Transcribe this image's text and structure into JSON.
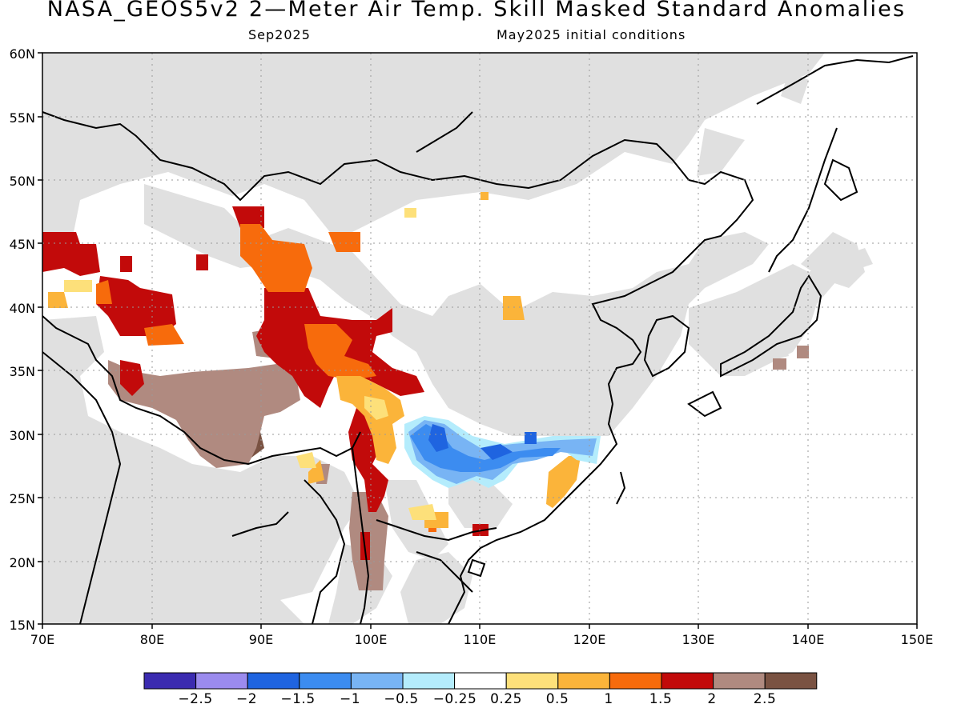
{
  "title": "NASA_GEOS5v2 2—Meter Air Temp. Skill Masked Standard Anomalies",
  "subtitle_left": "Sep2025",
  "subtitle_right": "May2025 initial conditions",
  "lat_labels": [
    "60N",
    "55N",
    "50N",
    "45N",
    "40N",
    "35N",
    "30N",
    "25N",
    "20N",
    "15N"
  ],
  "lon_labels": [
    "70E",
    "80E",
    "90E",
    "100E",
    "110E",
    "120E",
    "130E",
    "140E",
    "150E"
  ],
  "colorbar": {
    "labels": [
      "−2.5",
      "−2",
      "−1.5",
      "−1",
      "−0.5",
      "−0.25",
      "0.25",
      "0.5",
      "1",
      "1.5",
      "2",
      "2.5"
    ],
    "colors": [
      "#3b2bb0",
      "#9b8bee",
      "#1f64e0",
      "#3c8cf0",
      "#78b4f4",
      "#b4ecfc",
      "#ffffff",
      "#fde07a",
      "#fbb43a",
      "#f76b0c",
      "#c20a0a",
      "#b08a80",
      "#7a5242"
    ]
  },
  "map_colors": {
    "masked": "#e0e0e0",
    "land_outline": "#000000",
    "grid": "#9a9a9a"
  }
}
